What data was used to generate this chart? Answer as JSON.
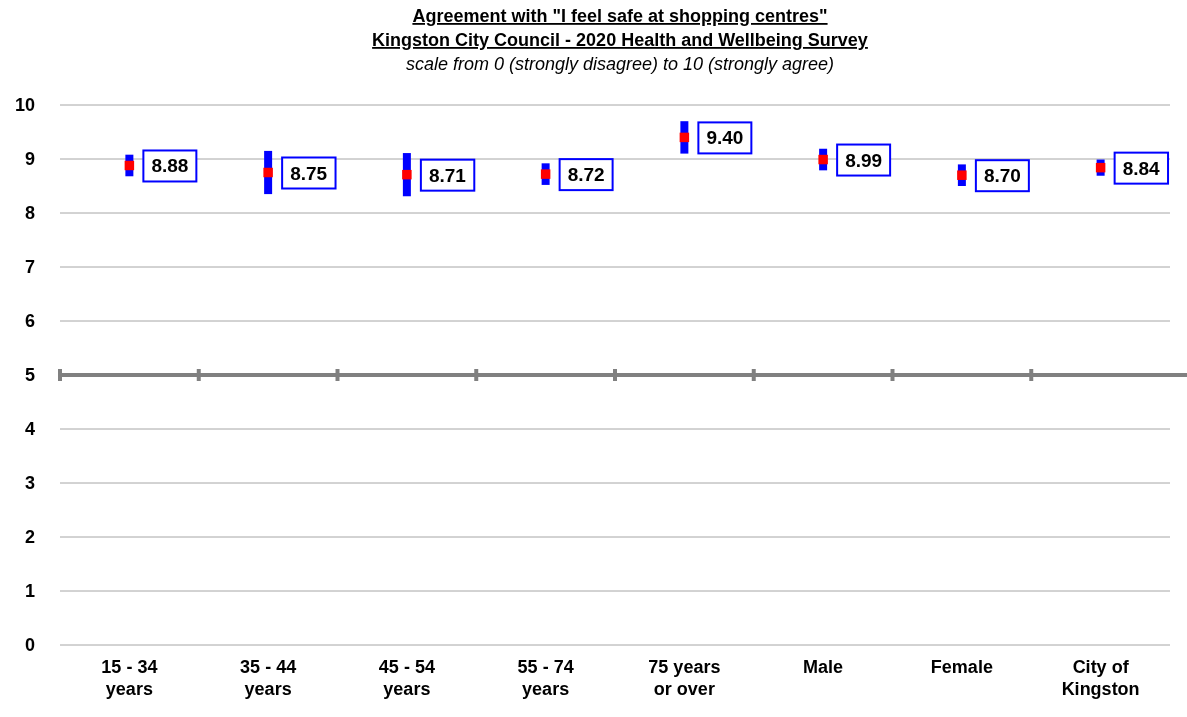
{
  "chart_data": {
    "type": "scatter",
    "title": "Agreement with \"I feel safe at shopping centres\"\nKingston City Council - 2020 Health and Wellbeing Survey",
    "subtitle": "scale from 0 (strongly disagree) to 10 (strongly agree)",
    "categories": [
      "15 - 34 years",
      "35 - 44 years",
      "45 - 54 years",
      "55 - 74 years",
      "75 years or over",
      "Male",
      "Female",
      "City of Kingston"
    ],
    "series": [
      {
        "color": "#ff0000",
        "values": [
          8.88,
          8.75,
          8.71,
          8.72,
          9.4,
          8.99,
          8.7,
          8.84
        ],
        "errors": [
          0.2,
          0.4,
          0.4,
          0.2,
          0.3,
          0.2,
          0.2,
          0.15
        ],
        "value_labels": [
          "8.88",
          "8.75",
          "8.71",
          "8.72",
          "9.40",
          "8.99",
          "8.70",
          "8.84"
        ]
      }
    ],
    "ylim": [
      0,
      10
    ],
    "yticks": [
      0,
      1,
      2,
      3,
      4,
      5,
      6,
      7,
      8,
      9,
      10
    ],
    "grid": "y",
    "marker": "square",
    "ref_lines": [
      {
        "axis": "y",
        "value": 5,
        "color": "#808080"
      }
    ]
  }
}
